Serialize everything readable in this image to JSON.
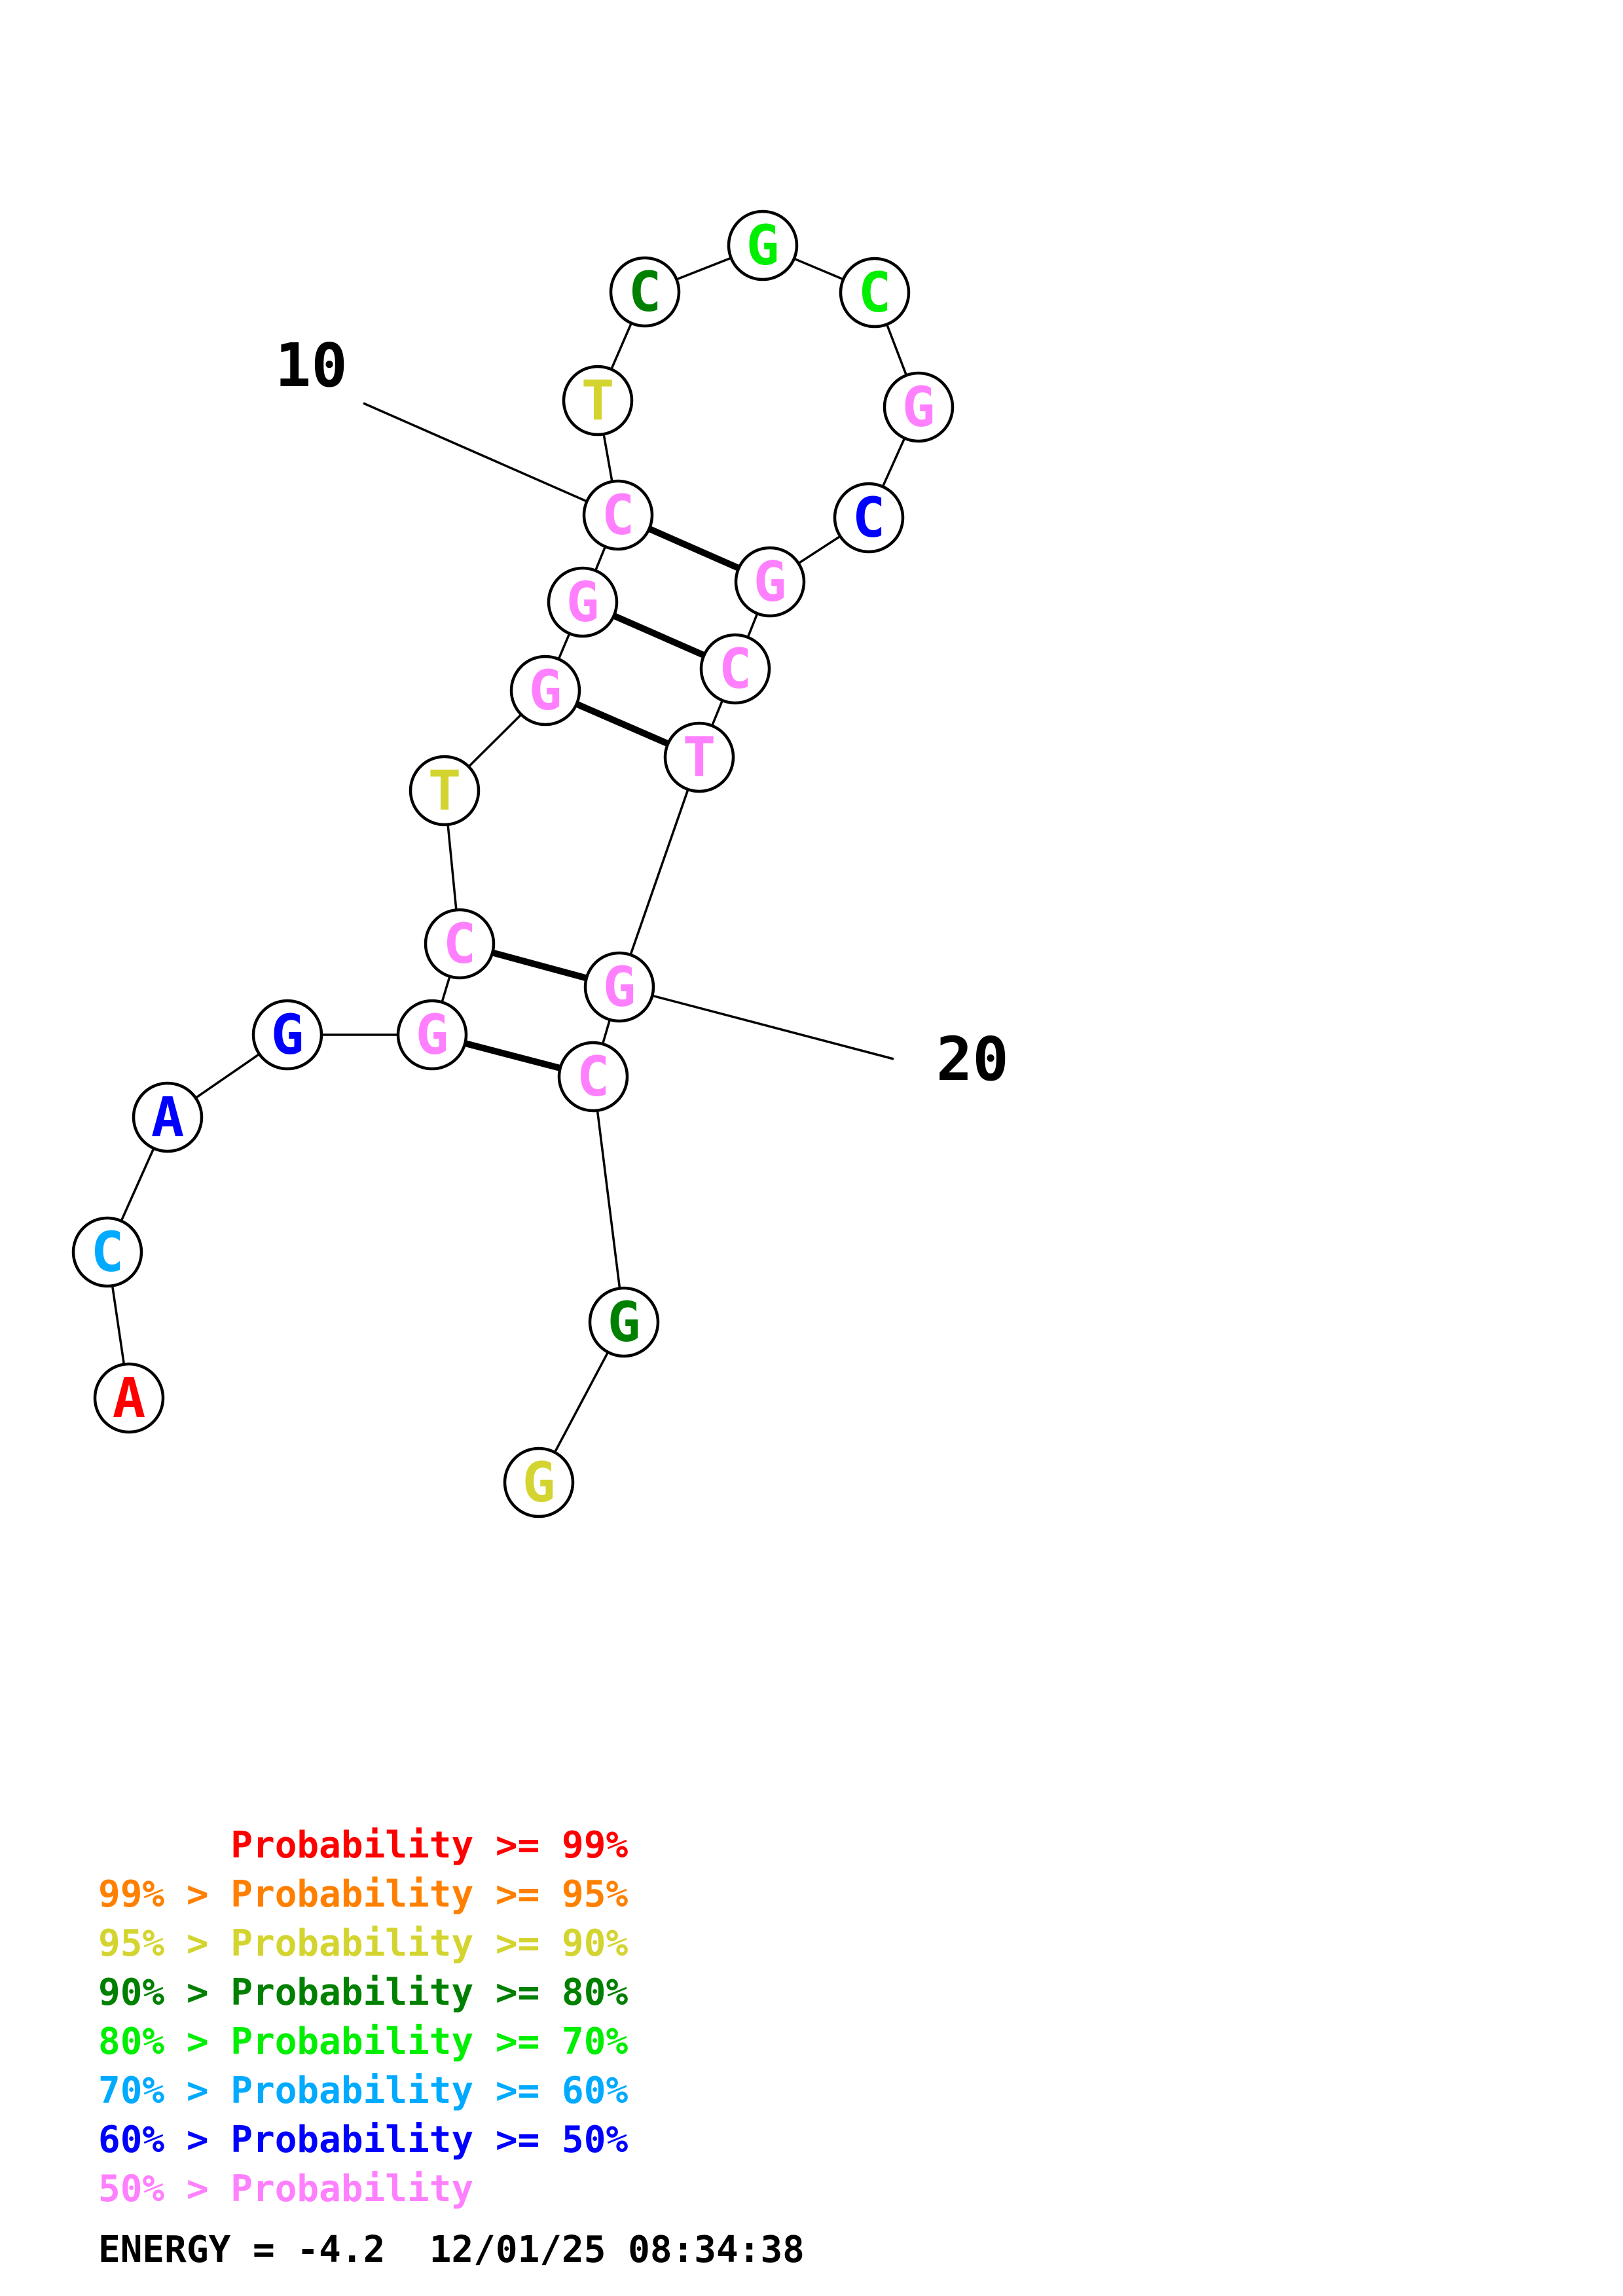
{
  "structure": {
    "nucleotides": [
      {
        "base": "A",
        "color": "#ff0000"
      },
      {
        "base": "C",
        "color": "#00aaff"
      },
      {
        "base": "A",
        "color": "#0000ff"
      },
      {
        "base": "G",
        "color": "#0000ff"
      },
      {
        "base": "G",
        "color": "#ff80ff"
      },
      {
        "base": "C",
        "color": "#ff80ff"
      },
      {
        "base": "T",
        "color": "#d4d430"
      },
      {
        "base": "G",
        "color": "#ff80ff"
      },
      {
        "base": "G",
        "color": "#ff80ff"
      },
      {
        "base": "C",
        "color": "#ff80ff"
      },
      {
        "base": "T",
        "color": "#d4d430"
      },
      {
        "base": "C",
        "color": "#008000"
      },
      {
        "base": "G",
        "color": "#00ee00"
      },
      {
        "base": "C",
        "color": "#00ee00"
      },
      {
        "base": "G",
        "color": "#ff80ff"
      },
      {
        "base": "C",
        "color": "#0000ff"
      },
      {
        "base": "G",
        "color": "#ff80ff"
      },
      {
        "base": "C",
        "color": "#ff80ff"
      },
      {
        "base": "T",
        "color": "#ff80ff"
      },
      {
        "base": "G",
        "color": "#ff80ff"
      },
      {
        "base": "C",
        "color": "#ff80ff"
      },
      {
        "base": "G",
        "color": "#008000"
      },
      {
        "base": "G",
        "color": "#d4d430"
      }
    ],
    "pairs": [
      [
        5,
        21
      ],
      [
        6,
        20
      ],
      [
        8,
        19
      ],
      [
        9,
        18
      ],
      [
        10,
        17
      ]
    ],
    "position_labels": [
      {
        "text": "10",
        "position": 10
      },
      {
        "text": "20",
        "position": 20
      }
    ]
  },
  "legend": [
    {
      "text": "      Probability >= 99%",
      "color": "#ff0000"
    },
    {
      "text": "99% > Probability >= 95%",
      "color": "#ff8000"
    },
    {
      "text": "95% > Probability >= 90%",
      "color": "#d4d430"
    },
    {
      "text": "90% > Probability >= 80%",
      "color": "#008000"
    },
    {
      "text": "80% > Probability >= 70%",
      "color": "#00ee00"
    },
    {
      "text": "70% > Probability >= 60%",
      "color": "#00aaff"
    },
    {
      "text": "60% > Probability >= 50%",
      "color": "#0000ff"
    },
    {
      "text": "50% > Probability",
      "color": "#ff80ff"
    }
  ],
  "footer": {
    "energy": "ENERGY = -4.2  12/01/25 08:34:38"
  }
}
